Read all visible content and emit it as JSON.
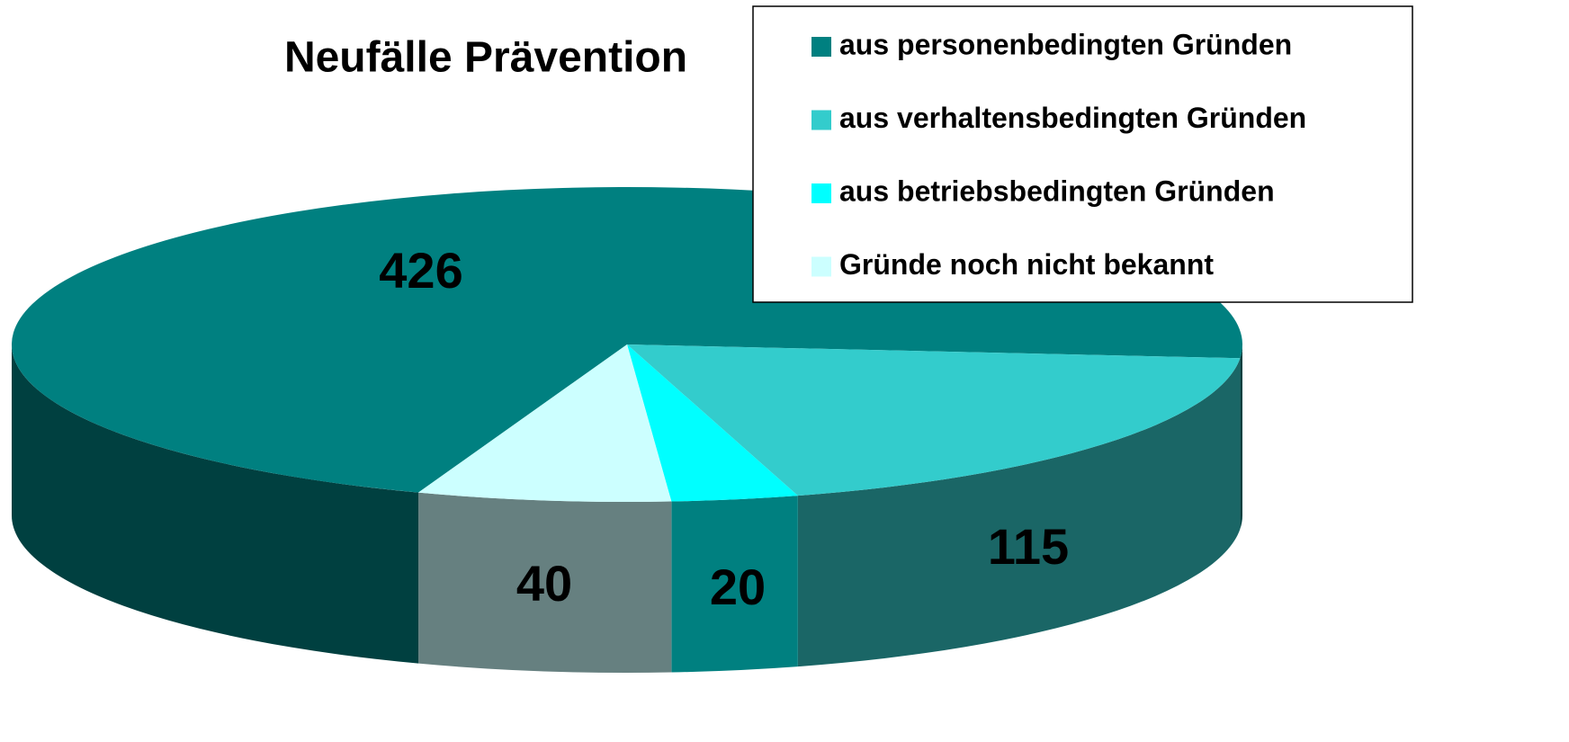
{
  "chart_data": {
    "type": "pie",
    "title": "Neufälle Prävention",
    "categories": [
      "aus personenbedingten Gründen",
      "aus verhaltensbedingten Gründen",
      "aus betriebsbedingten Gründen",
      "Gründe noch nicht bekannt"
    ],
    "values": [
      426,
      115,
      20,
      40
    ],
    "colors": [
      "#008080",
      "#33cccc",
      "#00ffff",
      "#ccffff"
    ],
    "legend": "top-right"
  }
}
